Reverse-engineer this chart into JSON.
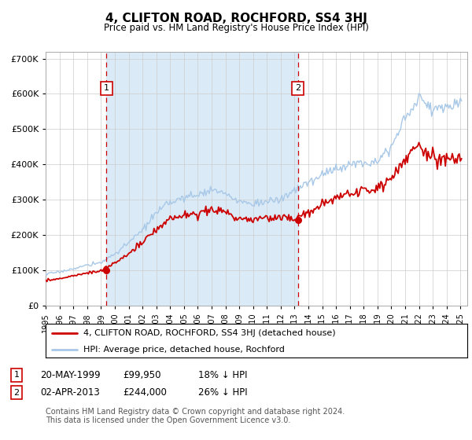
{
  "title": "4, CLIFTON ROAD, ROCHFORD, SS4 3HJ",
  "subtitle": "Price paid vs. HM Land Registry's House Price Index (HPI)",
  "legend_line1": "4, CLIFTON ROAD, ROCHFORD, SS4 3HJ (detached house)",
  "legend_line2": "HPI: Average price, detached house, Rochford",
  "footnote_line1": "Contains HM Land Registry data © Crown copyright and database right 2024.",
  "footnote_line2": "This data is licensed under the Open Government Licence v3.0.",
  "table_rows": [
    {
      "num": "1",
      "date": "20-MAY-1999",
      "price": "£99,950",
      "pct": "18% ↓ HPI"
    },
    {
      "num": "2",
      "date": "02-APR-2013",
      "price": "£244,000",
      "pct": "26% ↓ HPI"
    }
  ],
  "sale1_year": 1999.38,
  "sale1_price": 99950,
  "sale2_year": 2013.25,
  "sale2_price": 244000,
  "hpi_color": "#a8c8e8",
  "price_color": "#cc0000",
  "vline_color": "#cc0000",
  "bg_fill_color": "#daeaf7",
  "ylim_max": 720000,
  "yticks": [
    0,
    100000,
    200000,
    300000,
    400000,
    500000,
    600000,
    700000
  ]
}
